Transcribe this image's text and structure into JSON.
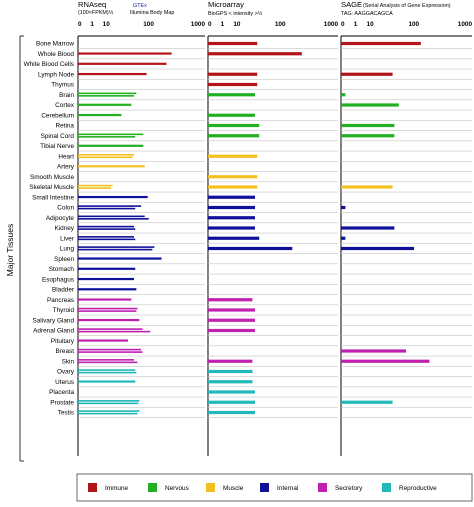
{
  "chart_data": {
    "type": "bar",
    "ylabel": "Major Tissues",
    "panels": [
      {
        "title": "RNAseq",
        "subtitle": "(100×FPKM)⅓",
        "source1": "GTEx",
        "source2": "Illumina Body Map",
        "ticks": [
          "0",
          "1",
          "10",
          "100",
          "1000"
        ],
        "tick_values": [
          0,
          1,
          10,
          100,
          1000
        ]
      },
      {
        "title": "Microarray",
        "subtitle": "BioGPS  < intensity >⅓",
        "source1": "",
        "source2": "",
        "ticks": [
          "0",
          "1",
          "10",
          "100",
          "1000"
        ],
        "tick_values": [
          0,
          1,
          10,
          100,
          1000
        ]
      },
      {
        "title": "SAGE",
        "subtitle": "(Serial Analysis of Gene Expression)",
        "source1": "TAG: AAGGACAGCA",
        "source2": "",
        "ticks": [
          "0",
          "1",
          "10",
          "100",
          "1000"
        ],
        "tick_values": [
          0,
          1,
          10,
          100,
          1000
        ]
      }
    ],
    "groups": [
      {
        "name": "Immune",
        "color": "#b3141a"
      },
      {
        "name": "Nervous",
        "color": "#22b022"
      },
      {
        "name": "Muscle",
        "color": "#f2c020"
      },
      {
        "name": "Internal",
        "color": "#10109a"
      },
      {
        "name": "Secretory",
        "color": "#c020b0"
      },
      {
        "name": "Reproductive",
        "color": "#20b8b8"
      }
    ],
    "tissues": [
      {
        "name": "Bone Marrow",
        "group": 0,
        "rna": [],
        "micro": 8,
        "sage": 48
      },
      {
        "name": "Whole Blood",
        "group": 0,
        "rna": [
          130
        ],
        "micro": 115,
        "sage": null
      },
      {
        "name": "White Blood Cells",
        "group": 0,
        "rna": [
          95
        ],
        "micro": null,
        "sage": null
      },
      {
        "name": "Lymph Node",
        "group": 0,
        "rna": [
          28
        ],
        "micro": 8,
        "sage": 9
      },
      {
        "name": "Thymus",
        "group": 0,
        "rna": [],
        "micro": 8,
        "sage": null
      },
      {
        "name": "Brain",
        "group": 1,
        "rna": [
          15,
          13
        ],
        "micro": 7,
        "sage": 0.3
      },
      {
        "name": "Cortex",
        "group": 1,
        "rna": [
          11
        ],
        "micro": null,
        "sage": 13
      },
      {
        "name": "Cerebellum",
        "group": 1,
        "rna": [
          6
        ],
        "micro": 7,
        "sage": null
      },
      {
        "name": "Retina",
        "group": 1,
        "rna": [],
        "micro": 9,
        "sage": 10
      },
      {
        "name": "Spinal Cord",
        "group": 1,
        "rna": [
          23,
          14
        ],
        "micro": 9,
        "sage": 10
      },
      {
        "name": "Tibial Nerve",
        "group": 1,
        "rna": [
          23
        ],
        "micro": null,
        "sage": null
      },
      {
        "name": "Heart",
        "group": 2,
        "rna": [
          13,
          12
        ],
        "micro": 8,
        "sage": null
      },
      {
        "name": "Artery",
        "group": 2,
        "rna": [
          25
        ],
        "micro": null,
        "sage": null
      },
      {
        "name": "Smooth Muscle",
        "group": 2,
        "rna": [],
        "micro": 8,
        "sage": null
      },
      {
        "name": "Skeletal Muscle",
        "group": 2,
        "rna": [
          3.5,
          3.2
        ],
        "micro": 8,
        "sage": 9
      },
      {
        "name": "Small Intestine",
        "group": 3,
        "rna": [
          30
        ],
        "micro": 7,
        "sage": null
      },
      {
        "name": "Colon",
        "group": 3,
        "rna": [
          20,
          14
        ],
        "micro": 7,
        "sage": 0.3
      },
      {
        "name": "Adipocyte",
        "group": 3,
        "rna": [
          25,
          32
        ],
        "micro": 7,
        "sage": null
      },
      {
        "name": "Kidney",
        "group": 3,
        "rna": [
          13,
          14
        ],
        "micro": 7,
        "sage": 10
      },
      {
        "name": "Liver",
        "group": 3,
        "rna": [
          13,
          14
        ],
        "micro": 9,
        "sage": 0.3
      },
      {
        "name": "Lung",
        "group": 3,
        "rna": [
          45,
          40
        ],
        "micro": 65,
        "sage": 32
      },
      {
        "name": "Spleen",
        "group": 3,
        "rna": [
          70
        ],
        "micro": null,
        "sage": null
      },
      {
        "name": "Stomach",
        "group": 3,
        "rna": [
          14
        ],
        "micro": null,
        "sage": null
      },
      {
        "name": "Esophagus",
        "group": 3,
        "rna": [
          13
        ],
        "micro": null,
        "sage": null
      },
      {
        "name": "Bladder",
        "group": 3,
        "rna": [
          15
        ],
        "micro": null,
        "sage": null
      },
      {
        "name": "Pancreas",
        "group": 4,
        "rna": [
          11
        ],
        "micro": 6,
        "sage": null
      },
      {
        "name": "Thyroid",
        "group": 4,
        "rna": [
          16,
          15
        ],
        "micro": 7,
        "sage": null
      },
      {
        "name": "Salivary Gland",
        "group": 4,
        "rna": [
          18
        ],
        "micro": 7,
        "sage": null
      },
      {
        "name": "Adrenal Gland",
        "group": 4,
        "rna": [
          22,
          35
        ],
        "micro": 7,
        "sage": null
      },
      {
        "name": "Pituitary",
        "group": 4,
        "rna": [
          9
        ],
        "micro": null,
        "sage": null
      },
      {
        "name": "Breast",
        "group": 4,
        "rna": [
          20,
          22
        ],
        "micro": null,
        "sage": 20
      },
      {
        "name": "Skin",
        "group": 4,
        "rna": [
          13,
          16
        ],
        "micro": 6,
        "sage": 80
      },
      {
        "name": "Ovary",
        "group": 5,
        "rna": [
          14,
          15
        ],
        "micro": 6,
        "sage": null
      },
      {
        "name": "Uterus",
        "group": 5,
        "rna": [
          14
        ],
        "micro": 6,
        "sage": null
      },
      {
        "name": "Placenta",
        "group": 5,
        "rna": [],
        "micro": 7,
        "sage": null
      },
      {
        "name": "Prostate",
        "group": 5,
        "rna": [
          18,
          17
        ],
        "micro": 7,
        "sage": 9
      },
      {
        "name": "Testis",
        "group": 5,
        "rna": [
          18,
          16
        ],
        "micro": 7,
        "sage": null
      }
    ]
  }
}
